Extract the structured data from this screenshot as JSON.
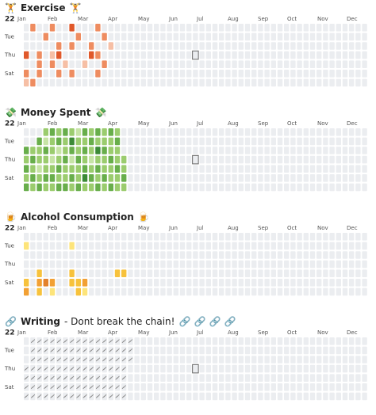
{
  "year_label": "22",
  "months": [
    "Jan",
    "Feb",
    "Mar",
    "Apr",
    "May",
    "Jun",
    "Jul",
    "Aug",
    "Sep",
    "Oct",
    "Nov",
    "Dec"
  ],
  "day_labels": [
    "Tue",
    "Thu",
    "Sat"
  ],
  "sections": [
    {
      "icon": "🏋️",
      "title": "Exercise",
      "subtitle": null,
      "icon_end": "🏋️",
      "style": "fill",
      "today_marker": true,
      "colors": [
        "#ebedf0",
        "#f6bfa5",
        "#ee8c60",
        "#e0582a",
        "#c53b22"
      ],
      "weeks": [
        [
          0,
          0,
          0,
          3,
          0,
          2,
          1
        ],
        [
          2,
          0,
          0,
          0,
          0,
          0,
          2
        ],
        [
          0,
          0,
          0,
          2,
          2,
          2,
          0
        ],
        [
          0,
          2,
          0,
          0,
          0,
          0,
          0
        ],
        [
          2,
          0,
          0,
          1,
          2,
          0,
          0
        ],
        [
          0,
          0,
          2,
          3,
          0,
          2,
          0
        ],
        [
          0,
          0,
          0,
          0,
          1,
          0,
          0
        ],
        [
          3,
          0,
          2,
          0,
          0,
          2,
          0
        ],
        [
          0,
          2,
          0,
          0,
          0,
          0,
          0
        ],
        [
          0,
          0,
          0,
          0,
          1,
          0,
          0
        ],
        [
          0,
          0,
          2,
          3,
          0,
          0,
          0
        ],
        [
          2,
          0,
          0,
          2,
          0,
          2,
          0
        ],
        [
          0,
          2,
          0,
          0,
          2,
          0,
          0
        ],
        [
          0,
          0,
          1,
          0,
          0,
          0,
          0
        ]
      ]
    },
    {
      "icon": "💸",
      "title": "Money Spent",
      "subtitle": null,
      "icon_end": "💸",
      "style": "fill",
      "today_marker": true,
      "colors": [
        "#ebedf0",
        "#c7e4a6",
        "#9bcc6e",
        "#68ae4b",
        "#3b8a36"
      ],
      "weeks": [
        [
          0,
          0,
          3,
          2,
          3,
          2,
          3
        ],
        [
          0,
          0,
          2,
          3,
          2,
          3,
          2
        ],
        [
          0,
          3,
          2,
          2,
          1,
          2,
          3
        ],
        [
          2,
          1,
          3,
          2,
          2,
          3,
          2
        ],
        [
          3,
          2,
          2,
          1,
          2,
          3,
          2
        ],
        [
          2,
          3,
          1,
          2,
          3,
          2,
          3
        ],
        [
          3,
          2,
          2,
          3,
          2,
          2,
          3
        ],
        [
          2,
          4,
          3,
          1,
          2,
          3,
          2
        ],
        [
          1,
          2,
          2,
          3,
          2,
          2,
          3
        ],
        [
          3,
          2,
          3,
          2,
          3,
          4,
          2
        ],
        [
          2,
          3,
          2,
          1,
          2,
          3,
          2
        ],
        [
          3,
          2,
          4,
          2,
          3,
          2,
          3
        ],
        [
          2,
          2,
          3,
          2,
          2,
          3,
          2
        ],
        [
          3,
          2,
          2,
          3,
          2,
          2,
          3
        ],
        [
          2,
          3,
          2,
          2,
          3,
          2,
          2
        ],
        [
          0,
          0,
          0,
          2,
          2,
          3,
          2
        ]
      ]
    },
    {
      "icon": "🍺",
      "title": "Alcohol Consumption",
      "subtitle": null,
      "icon_end": "🍺",
      "style": "fill",
      "today_marker": false,
      "colors": [
        "#ebedf0",
        "#fde47a",
        "#f7c23c",
        "#f2a033",
        "#e3812c"
      ],
      "weeks": [
        [
          0,
          1,
          0,
          0,
          0,
          2,
          3
        ],
        [
          0,
          0,
          0,
          0,
          0,
          0,
          0
        ],
        [
          0,
          0,
          0,
          0,
          2,
          3,
          2
        ],
        [
          0,
          0,
          0,
          0,
          0,
          4,
          0
        ],
        [
          0,
          0,
          0,
          0,
          0,
          3,
          1
        ],
        [
          0,
          0,
          0,
          0,
          0,
          0,
          0
        ],
        [
          0,
          0,
          0,
          0,
          0,
          0,
          0
        ],
        [
          0,
          1,
          0,
          0,
          2,
          2,
          0
        ],
        [
          0,
          0,
          0,
          0,
          0,
          2,
          2
        ],
        [
          0,
          0,
          0,
          0,
          0,
          3,
          1
        ],
        [
          0,
          0,
          0,
          0,
          0,
          0,
          0
        ],
        [
          0,
          0,
          0,
          0,
          0,
          0,
          0
        ],
        [
          0,
          0,
          0,
          0,
          0,
          0,
          0
        ],
        [
          0,
          0,
          0,
          0,
          0,
          0,
          0
        ],
        [
          0,
          0,
          0,
          0,
          2,
          0,
          0
        ],
        [
          0,
          0,
          0,
          0,
          2,
          0,
          0
        ]
      ]
    },
    {
      "icon": "🔗",
      "title": "Writing",
      "subtitle": "- Dont break the chain!",
      "icon_end": "🔗 🔗 🔗 🔗",
      "style": "chain",
      "today_marker": true,
      "colors": [
        "#ebedf0",
        "#ebedf0"
      ],
      "weeks": [
        [
          0,
          0,
          0,
          1,
          1,
          1,
          1
        ],
        [
          1,
          1,
          1,
          1,
          1,
          1,
          1
        ],
        [
          1,
          1,
          1,
          1,
          1,
          1,
          1
        ],
        [
          1,
          1,
          1,
          1,
          1,
          1,
          1
        ],
        [
          1,
          1,
          1,
          1,
          1,
          1,
          1
        ],
        [
          1,
          1,
          1,
          1,
          1,
          1,
          1
        ],
        [
          1,
          1,
          1,
          1,
          1,
          1,
          1
        ],
        [
          1,
          1,
          1,
          1,
          1,
          1,
          1
        ],
        [
          1,
          1,
          1,
          1,
          1,
          1,
          1
        ],
        [
          1,
          1,
          1,
          1,
          1,
          1,
          1
        ],
        [
          1,
          1,
          1,
          1,
          1,
          1,
          1
        ],
        [
          1,
          1,
          1,
          1,
          1,
          1,
          1
        ],
        [
          1,
          1,
          1,
          1,
          1,
          1,
          1
        ],
        [
          1,
          1,
          1,
          1,
          1,
          1,
          1
        ],
        [
          1,
          1,
          1,
          1,
          1,
          1,
          1
        ],
        [
          1,
          1,
          1,
          1,
          1,
          1,
          1
        ],
        [
          1,
          1,
          1,
          0,
          0,
          0,
          0
        ]
      ]
    }
  ]
}
